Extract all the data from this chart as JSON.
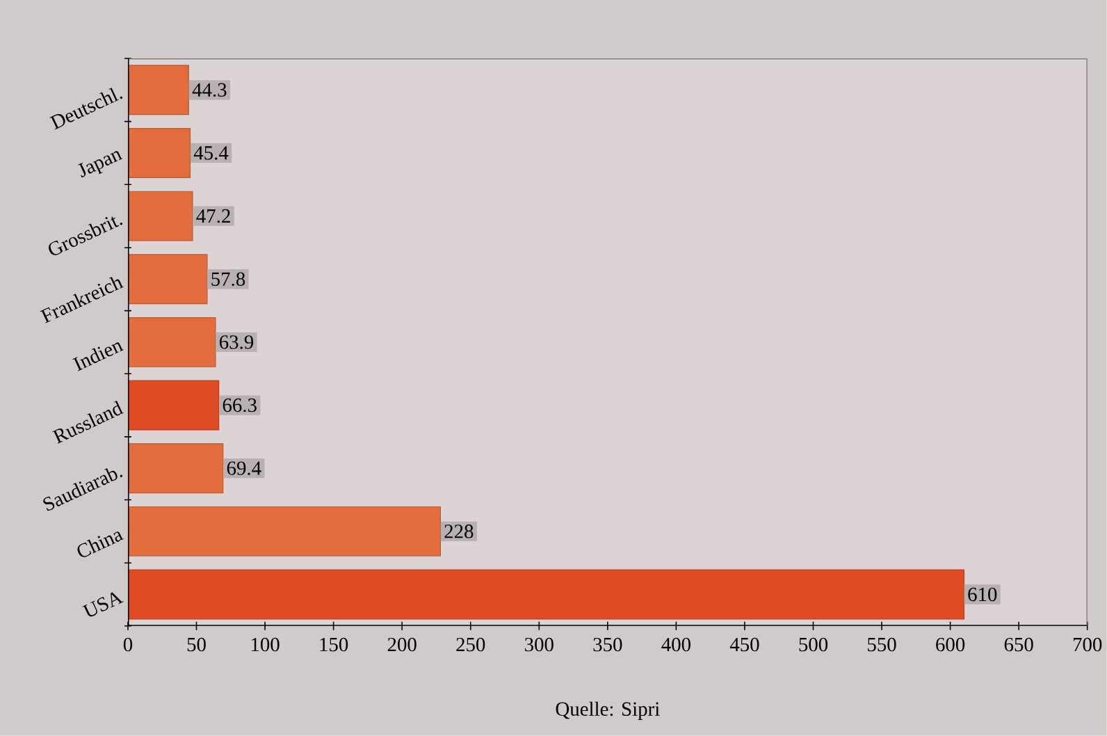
{
  "chart_data": {
    "type": "bar",
    "orientation": "horizontal",
    "categories": [
      "Deutschl.",
      "Japan",
      "Grossbrit.",
      "Frankreich",
      "Indien",
      "Russland",
      "Saudiarab.",
      "China",
      "USA"
    ],
    "values": [
      44.3,
      45.4,
      47.2,
      57.8,
      63.9,
      66.3,
      69.4,
      228,
      610
    ],
    "colors": [
      "#e36d3e",
      "#e36d3e",
      "#e36d3e",
      "#e36d3e",
      "#e36d3e",
      "#df4b24",
      "#e36d3e",
      "#e36d3e",
      "#df4b24"
    ],
    "xlim": [
      0,
      700
    ],
    "xticks": [
      0,
      50,
      100,
      150,
      200,
      250,
      300,
      350,
      400,
      450,
      500,
      550,
      600,
      650,
      700
    ],
    "data_labels": true,
    "annotations": [
      "Quelle: Sipri"
    ]
  }
}
